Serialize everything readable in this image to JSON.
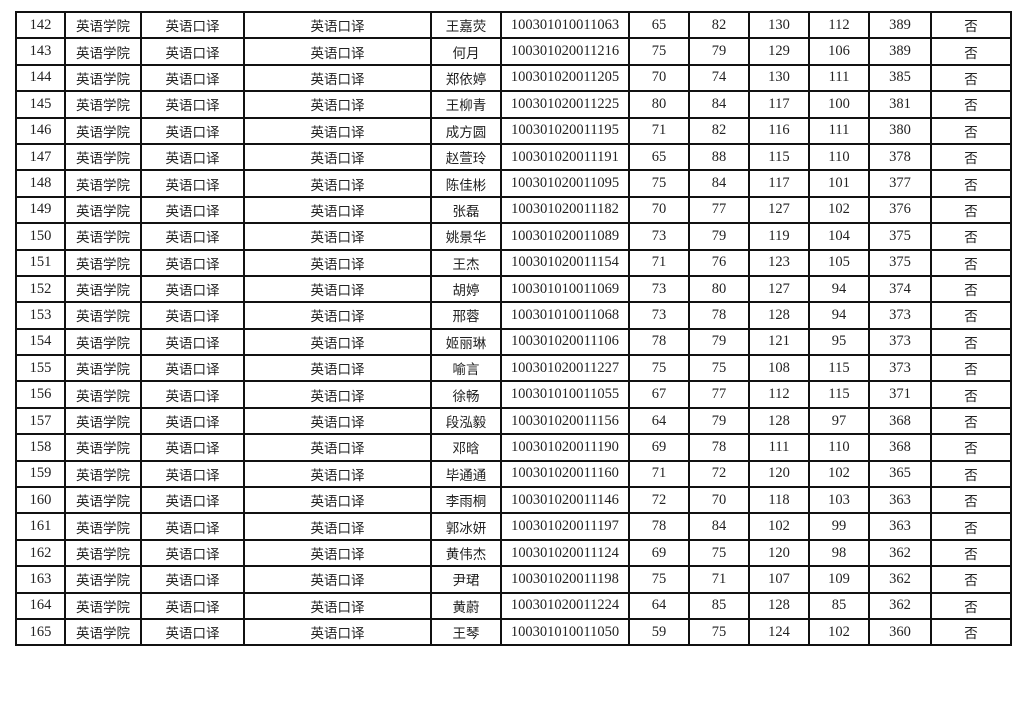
{
  "table": {
    "rows": [
      [
        "142",
        "英语学院",
        "英语口译",
        "英语口译",
        "王嘉荧",
        "100301010011063",
        "65",
        "82",
        "130",
        "112",
        "389",
        "否"
      ],
      [
        "143",
        "英语学院",
        "英语口译",
        "英语口译",
        "何月",
        "100301020011216",
        "75",
        "79",
        "129",
        "106",
        "389",
        "否"
      ],
      [
        "144",
        "英语学院",
        "英语口译",
        "英语口译",
        "郑依婷",
        "100301020011205",
        "70",
        "74",
        "130",
        "111",
        "385",
        "否"
      ],
      [
        "145",
        "英语学院",
        "英语口译",
        "英语口译",
        "王柳青",
        "100301020011225",
        "80",
        "84",
        "117",
        "100",
        "381",
        "否"
      ],
      [
        "146",
        "英语学院",
        "英语口译",
        "英语口译",
        "成方圆",
        "100301020011195",
        "71",
        "82",
        "116",
        "111",
        "380",
        "否"
      ],
      [
        "147",
        "英语学院",
        "英语口译",
        "英语口译",
        "赵萱玲",
        "100301020011191",
        "65",
        "88",
        "115",
        "110",
        "378",
        "否"
      ],
      [
        "148",
        "英语学院",
        "英语口译",
        "英语口译",
        "陈佳彬",
        "100301020011095",
        "75",
        "84",
        "117",
        "101",
        "377",
        "否"
      ],
      [
        "149",
        "英语学院",
        "英语口译",
        "英语口译",
        "张磊",
        "100301020011182",
        "70",
        "77",
        "127",
        "102",
        "376",
        "否"
      ],
      [
        "150",
        "英语学院",
        "英语口译",
        "英语口译",
        "姚景华",
        "100301020011089",
        "73",
        "79",
        "119",
        "104",
        "375",
        "否"
      ],
      [
        "151",
        "英语学院",
        "英语口译",
        "英语口译",
        "王杰",
        "100301020011154",
        "71",
        "76",
        "123",
        "105",
        "375",
        "否"
      ],
      [
        "152",
        "英语学院",
        "英语口译",
        "英语口译",
        "胡婷",
        "100301010011069",
        "73",
        "80",
        "127",
        "94",
        "374",
        "否"
      ],
      [
        "153",
        "英语学院",
        "英语口译",
        "英语口译",
        "邢蓉",
        "100301010011068",
        "73",
        "78",
        "128",
        "94",
        "373",
        "否"
      ],
      [
        "154",
        "英语学院",
        "英语口译",
        "英语口译",
        "姬丽琳",
        "100301020011106",
        "78",
        "79",
        "121",
        "95",
        "373",
        "否"
      ],
      [
        "155",
        "英语学院",
        "英语口译",
        "英语口译",
        "喻言",
        "100301020011227",
        "75",
        "75",
        "108",
        "115",
        "373",
        "否"
      ],
      [
        "156",
        "英语学院",
        "英语口译",
        "英语口译",
        "徐畅",
        "100301010011055",
        "67",
        "77",
        "112",
        "115",
        "371",
        "否"
      ],
      [
        "157",
        "英语学院",
        "英语口译",
        "英语口译",
        "段泓毅",
        "100301020011156",
        "64",
        "79",
        "128",
        "97",
        "368",
        "否"
      ],
      [
        "158",
        "英语学院",
        "英语口译",
        "英语口译",
        "邓晗",
        "100301020011190",
        "69",
        "78",
        "111",
        "110",
        "368",
        "否"
      ],
      [
        "159",
        "英语学院",
        "英语口译",
        "英语口译",
        "毕通通",
        "100301020011160",
        "71",
        "72",
        "120",
        "102",
        "365",
        "否"
      ],
      [
        "160",
        "英语学院",
        "英语口译",
        "英语口译",
        "李雨桐",
        "100301020011146",
        "72",
        "70",
        "118",
        "103",
        "363",
        "否"
      ],
      [
        "161",
        "英语学院",
        "英语口译",
        "英语口译",
        "郭冰妍",
        "100301020011197",
        "78",
        "84",
        "102",
        "99",
        "363",
        "否"
      ],
      [
        "162",
        "英语学院",
        "英语口译",
        "英语口译",
        "黄伟杰",
        "100301020011124",
        "69",
        "75",
        "120",
        "98",
        "362",
        "否"
      ],
      [
        "163",
        "英语学院",
        "英语口译",
        "英语口译",
        "尹珺",
        "100301020011198",
        "75",
        "71",
        "107",
        "109",
        "362",
        "否"
      ],
      [
        "164",
        "英语学院",
        "英语口译",
        "英语口译",
        "黄蔚",
        "100301020011224",
        "64",
        "85",
        "128",
        "85",
        "362",
        "否"
      ],
      [
        "165",
        "英语学院",
        "英语口译",
        "英语口译",
        "王琴",
        "100301010011050",
        "59",
        "75",
        "124",
        "102",
        "360",
        "否"
      ]
    ]
  }
}
